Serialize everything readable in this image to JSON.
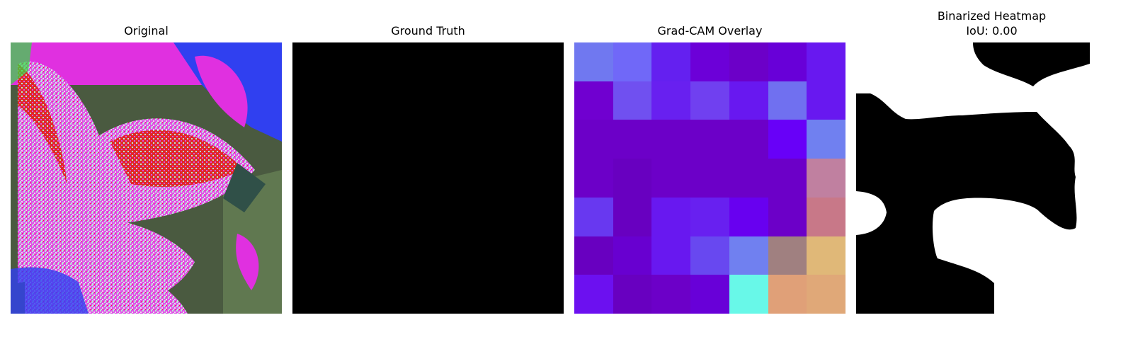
{
  "panels": {
    "original": {
      "title": "Original"
    },
    "ground_truth": {
      "title": "Ground Truth"
    },
    "gradcam": {
      "title": "Grad-CAM Overlay",
      "grid_colors": [
        [
          "#7078f0",
          "#7068f8",
          "#6420f0",
          "#6c00d8",
          "#6c00c8",
          "#6800d8",
          "#6818f0"
        ],
        [
          "#7000d0",
          "#7050f0",
          "#6820f0",
          "#7040f0",
          "#6818f0",
          "#7070f0",
          "#6818f0"
        ],
        [
          "#6c00c8",
          "#6c00c8",
          "#6c00c8",
          "#6c00c8",
          "#6c00c8",
          "#6800f8",
          "#7080f0"
        ],
        [
          "#6c00c8",
          "#6800c0",
          "#6c00c8",
          "#6c00c8",
          "#6c00c8",
          "#6c00c8",
          "#c080a0"
        ],
        [
          "#6838f0",
          "#6800c0",
          "#6818f0",
          "#6820f0",
          "#6800f0",
          "#6c00c8",
          "#c87888"
        ],
        [
          "#6800c0",
          "#6800d0",
          "#6818f0",
          "#6848f0",
          "#7080f0",
          "#a08080",
          "#e0b878"
        ],
        [
          "#6c10f0",
          "#6800c0",
          "#6c00c8",
          "#6800d8",
          "#68f8e8",
          "#e0a078",
          "#e0a878"
        ]
      ]
    },
    "binarized": {
      "title": "Binarized Heatmap",
      "iou": "IoU: 0.00"
    }
  }
}
